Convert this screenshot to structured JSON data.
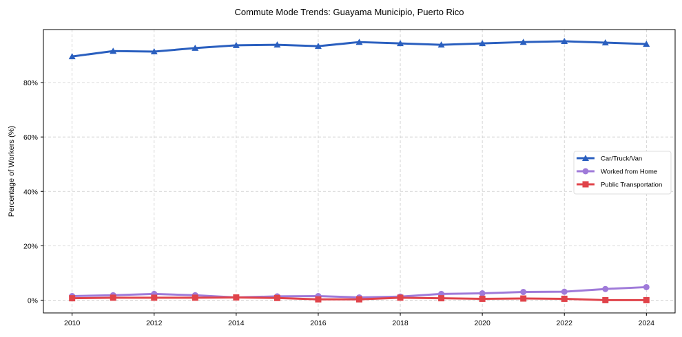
{
  "chart_data": {
    "type": "line",
    "title": "Commute Mode Trends: Guayama Municipio, Puerto Rico",
    "xlabel": "",
    "ylabel": "Percentage of Workers (%)",
    "x": [
      2010,
      2011,
      2012,
      2013,
      2014,
      2015,
      2016,
      2017,
      2018,
      2019,
      2020,
      2021,
      2022,
      2023,
      2024
    ],
    "xticks": [
      2010,
      2012,
      2014,
      2016,
      2018,
      2020,
      2022,
      2024
    ],
    "xtick_labels": [
      "2010",
      "2012",
      "2014",
      "2016",
      "2018",
      "2020",
      "2022",
      "2024"
    ],
    "yticks": [
      0,
      20,
      40,
      60,
      80
    ],
    "ytick_labels": [
      "0%",
      "20%",
      "40%",
      "60%",
      "80%"
    ],
    "xlim": [
      2009.3,
      2024.7
    ],
    "ylim": [
      -4.7,
      99.5
    ],
    "grid": true,
    "legend_position": "center-right",
    "series": [
      {
        "name": "Car/Truck/Van",
        "color": "#2a5fbf",
        "marker": "triangle",
        "values": [
          89.6,
          91.6,
          91.4,
          92.7,
          93.7,
          93.9,
          93.4,
          94.9,
          94.4,
          93.9,
          94.4,
          94.9,
          95.2,
          94.7,
          94.2
        ]
      },
      {
        "name": "Worked from Home",
        "color": "#9f7ad9",
        "marker": "circle",
        "values": [
          1.5,
          1.8,
          2.3,
          1.8,
          1.0,
          1.4,
          1.5,
          1.0,
          1.3,
          2.3,
          2.5,
          3.0,
          3.1,
          4.1,
          4.8
        ]
      },
      {
        "name": "Public Transportation",
        "color": "#e0434a",
        "marker": "square",
        "values": [
          0.7,
          0.9,
          0.9,
          0.9,
          1.0,
          0.8,
          0.3,
          0.3,
          0.9,
          0.7,
          0.5,
          0.6,
          0.5,
          0.0,
          0.0
        ]
      }
    ]
  }
}
